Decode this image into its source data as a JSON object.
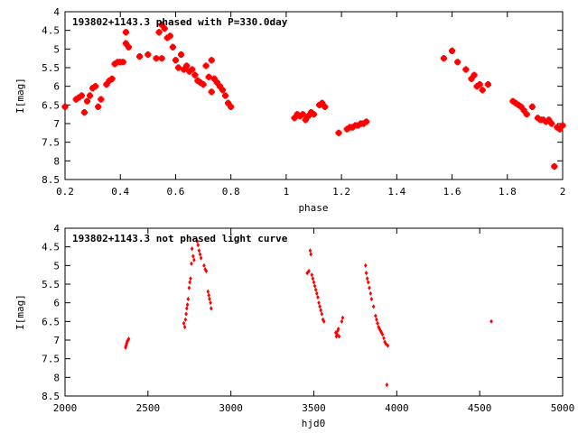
{
  "chart_data": [
    {
      "type": "scatter",
      "title": "193802+1143.3 phased with P=330.0day",
      "xlabel": "phase",
      "ylabel": "I[mag]",
      "xlim": [
        0.2,
        2.0
      ],
      "ylim": [
        8.5,
        4.0
      ],
      "y_inverted": true,
      "xticks": [
        "0.2",
        "0.4",
        "0.6",
        "0.8",
        "1",
        "1.2",
        "1.4",
        "1.6",
        "1.8",
        "2"
      ],
      "yticks": [
        "4",
        "4.5",
        "5",
        "5.5",
        "6",
        "6.5",
        "7",
        "7.5",
        "8",
        "8.5"
      ],
      "marker_color": "#ff0000",
      "points": [
        [
          0.2,
          6.55
        ],
        [
          0.24,
          6.35
        ],
        [
          0.25,
          6.3
        ],
        [
          0.26,
          6.25
        ],
        [
          0.27,
          6.7
        ],
        [
          0.28,
          6.4
        ],
        [
          0.29,
          6.25
        ],
        [
          0.3,
          6.05
        ],
        [
          0.31,
          6.0
        ],
        [
          0.32,
          6.55
        ],
        [
          0.33,
          6.35
        ],
        [
          0.35,
          5.95
        ],
        [
          0.36,
          5.85
        ],
        [
          0.37,
          5.8
        ],
        [
          0.38,
          5.4
        ],
        [
          0.39,
          5.35
        ],
        [
          0.4,
          5.35
        ],
        [
          0.41,
          5.35
        ],
        [
          0.42,
          4.55
        ],
        [
          0.42,
          4.85
        ],
        [
          0.43,
          4.95
        ],
        [
          0.47,
          5.2
        ],
        [
          0.5,
          5.15
        ],
        [
          0.53,
          5.25
        ],
        [
          0.54,
          4.55
        ],
        [
          0.55,
          4.35
        ],
        [
          0.55,
          5.25
        ],
        [
          0.56,
          4.45
        ],
        [
          0.57,
          4.7
        ],
        [
          0.58,
          4.65
        ],
        [
          0.59,
          4.95
        ],
        [
          0.6,
          5.3
        ],
        [
          0.61,
          5.5
        ],
        [
          0.62,
          5.15
        ],
        [
          0.63,
          5.55
        ],
        [
          0.64,
          5.45
        ],
        [
          0.65,
          5.6
        ],
        [
          0.66,
          5.55
        ],
        [
          0.67,
          5.7
        ],
        [
          0.68,
          5.85
        ],
        [
          0.69,
          5.9
        ],
        [
          0.7,
          5.95
        ],
        [
          0.71,
          5.45
        ],
        [
          0.72,
          5.75
        ],
        [
          0.73,
          5.3
        ],
        [
          0.73,
          6.15
        ],
        [
          0.74,
          5.8
        ],
        [
          0.75,
          5.9
        ],
        [
          0.76,
          6.0
        ],
        [
          0.77,
          6.1
        ],
        [
          0.78,
          6.25
        ],
        [
          0.79,
          6.45
        ],
        [
          0.8,
          6.55
        ],
        [
          1.03,
          6.85
        ],
        [
          1.04,
          6.75
        ],
        [
          1.05,
          6.8
        ],
        [
          1.06,
          6.75
        ],
        [
          1.07,
          6.9
        ],
        [
          1.08,
          6.8
        ],
        [
          1.09,
          6.7
        ],
        [
          1.1,
          6.75
        ],
        [
          1.12,
          6.5
        ],
        [
          1.13,
          6.45
        ],
        [
          1.14,
          6.55
        ],
        [
          1.19,
          7.25
        ],
        [
          1.22,
          7.15
        ],
        [
          1.23,
          7.1
        ],
        [
          1.24,
          7.1
        ],
        [
          1.25,
          7.05
        ],
        [
          1.26,
          7.05
        ],
        [
          1.27,
          7.0
        ],
        [
          1.28,
          7.0
        ],
        [
          1.29,
          6.95
        ],
        [
          1.57,
          5.25
        ],
        [
          1.6,
          5.05
        ],
        [
          1.62,
          5.35
        ],
        [
          1.65,
          5.55
        ],
        [
          1.67,
          5.8
        ],
        [
          1.68,
          5.7
        ],
        [
          1.69,
          6.0
        ],
        [
          1.7,
          5.95
        ],
        [
          1.71,
          6.1
        ],
        [
          1.73,
          5.95
        ],
        [
          1.82,
          6.4
        ],
        [
          1.83,
          6.45
        ],
        [
          1.84,
          6.5
        ],
        [
          1.85,
          6.55
        ],
        [
          1.86,
          6.65
        ],
        [
          1.87,
          6.75
        ],
        [
          1.89,
          6.55
        ],
        [
          1.91,
          6.85
        ],
        [
          1.92,
          6.9
        ],
        [
          1.93,
          6.9
        ],
        [
          1.94,
          6.95
        ],
        [
          1.95,
          6.9
        ],
        [
          1.96,
          7.0
        ],
        [
          1.97,
          8.15
        ],
        [
          1.98,
          7.1
        ],
        [
          1.99,
          7.15
        ],
        [
          2.0,
          7.05
        ]
      ]
    },
    {
      "type": "scatter",
      "title": "193802+1143.3 not phased light curve",
      "xlabel": "hjd0",
      "ylabel": "I[mag]",
      "xlim": [
        2000,
        5000
      ],
      "ylim": [
        8.5,
        4.0
      ],
      "y_inverted": true,
      "xticks": [
        "2000",
        "2500",
        "3000",
        "3500",
        "4000",
        "4500",
        "5000"
      ],
      "yticks": [
        "4",
        "4.5",
        "5",
        "5.5",
        "6",
        "6.5",
        "7",
        "7.5",
        "8",
        "8.5"
      ],
      "marker_color": "#ff0000",
      "points": [
        [
          2365,
          7.2
        ],
        [
          2368,
          7.15
        ],
        [
          2371,
          7.1
        ],
        [
          2374,
          7.05
        ],
        [
          2377,
          7.02
        ],
        [
          2380,
          7.0
        ],
        [
          2384,
          6.97
        ],
        [
          2716,
          6.55
        ],
        [
          2722,
          6.65
        ],
        [
          2726,
          6.45
        ],
        [
          2730,
          6.3
        ],
        [
          2734,
          6.15
        ],
        [
          2738,
          6.05
        ],
        [
          2742,
          5.9
        ],
        [
          2748,
          5.6
        ],
        [
          2752,
          5.45
        ],
        [
          2757,
          5.35
        ],
        [
          2762,
          4.95
        ],
        [
          2766,
          4.55
        ],
        [
          2772,
          4.75
        ],
        [
          2778,
          4.85
        ],
        [
          2797,
          4.35
        ],
        [
          2802,
          4.45
        ],
        [
          2808,
          4.6
        ],
        [
          2814,
          4.7
        ],
        [
          2820,
          4.8
        ],
        [
          2838,
          5.0
        ],
        [
          2845,
          5.1
        ],
        [
          2851,
          5.15
        ],
        [
          2862,
          5.7
        ],
        [
          2867,
          5.8
        ],
        [
          2871,
          5.9
        ],
        [
          2877,
          6.0
        ],
        [
          2881,
          6.15
        ],
        [
          3460,
          5.2
        ],
        [
          3470,
          5.15
        ],
        [
          3478,
          4.6
        ],
        [
          3482,
          4.7
        ],
        [
          3488,
          5.25
        ],
        [
          3494,
          5.35
        ],
        [
          3500,
          5.45
        ],
        [
          3506,
          5.55
        ],
        [
          3512,
          5.65
        ],
        [
          3518,
          5.75
        ],
        [
          3524,
          5.85
        ],
        [
          3530,
          6.0
        ],
        [
          3536,
          6.1
        ],
        [
          3542,
          6.2
        ],
        [
          3548,
          6.3
        ],
        [
          3555,
          6.45
        ],
        [
          3561,
          6.5
        ],
        [
          3632,
          6.8
        ],
        [
          3636,
          6.9
        ],
        [
          3640,
          6.85
        ],
        [
          3644,
          6.75
        ],
        [
          3648,
          6.7
        ],
        [
          3652,
          6.9
        ],
        [
          3668,
          6.5
        ],
        [
          3674,
          6.4
        ],
        [
          3812,
          5.0
        ],
        [
          3816,
          5.2
        ],
        [
          3822,
          5.35
        ],
        [
          3828,
          5.45
        ],
        [
          3835,
          5.6
        ],
        [
          3842,
          5.75
        ],
        [
          3848,
          5.9
        ],
        [
          3860,
          6.1
        ],
        [
          3872,
          6.35
        ],
        [
          3878,
          6.45
        ],
        [
          3884,
          6.55
        ],
        [
          3890,
          6.65
        ],
        [
          3896,
          6.7
        ],
        [
          3902,
          6.75
        ],
        [
          3908,
          6.8
        ],
        [
          3914,
          6.85
        ],
        [
          3922,
          6.95
        ],
        [
          3928,
          7.05
        ],
        [
          3934,
          7.1
        ],
        [
          3940,
          8.2
        ],
        [
          3946,
          7.15
        ],
        [
          4570,
          6.5
        ]
      ]
    }
  ]
}
